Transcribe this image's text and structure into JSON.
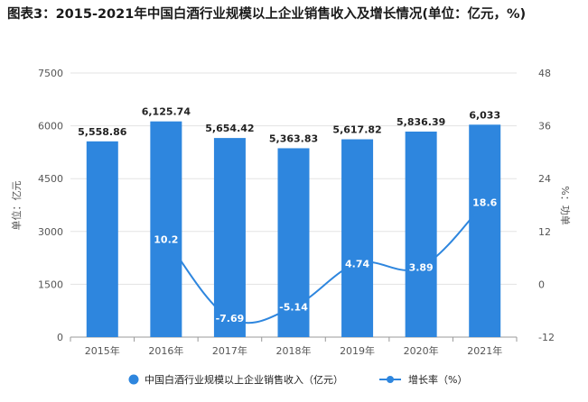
{
  "page": {
    "title": "图表3：2015-2021年中国白酒行业规模以上企业销售收入及增长情况(单位：亿元，%)"
  },
  "chart_data": {
    "type": "bar",
    "categories": [
      "2015年",
      "2016年",
      "2017年",
      "2018年",
      "2019年",
      "2020年",
      "2021年"
    ],
    "series": [
      {
        "name": "中国白酒行业规模以上企业销售收入（亿元）",
        "type": "bar",
        "axis": "left",
        "values": [
          5558.86,
          6125.74,
          5654.42,
          5363.83,
          5617.82,
          5836.39,
          6033
        ],
        "labels": [
          "5,558.86",
          "6,125.74",
          "5,654.42",
          "5,363.83",
          "5,617.82",
          "5,836.39",
          "6,033"
        ],
        "color": "#2e86de"
      },
      {
        "name": "增长率（%）",
        "type": "line",
        "axis": "right",
        "values": [
          null,
          10.2,
          -7.69,
          -5.14,
          4.74,
          3.89,
          18.6
        ],
        "labels": [
          "",
          "10.2",
          "-7.69",
          "-5.14",
          "4.74",
          "3.89",
          "18.6"
        ],
        "color": "#2e86de"
      }
    ],
    "ylabel": "单位：亿元",
    "y2label": "%：功单",
    "ylim": [
      0,
      7500
    ],
    "y2lim": [
      -12,
      48
    ],
    "yticks": [
      0,
      1500,
      3000,
      4500,
      6000,
      7500
    ],
    "y2ticks": [
      -12,
      0,
      12,
      24,
      36,
      48
    ],
    "grid": true,
    "legend_position": "bottom"
  }
}
